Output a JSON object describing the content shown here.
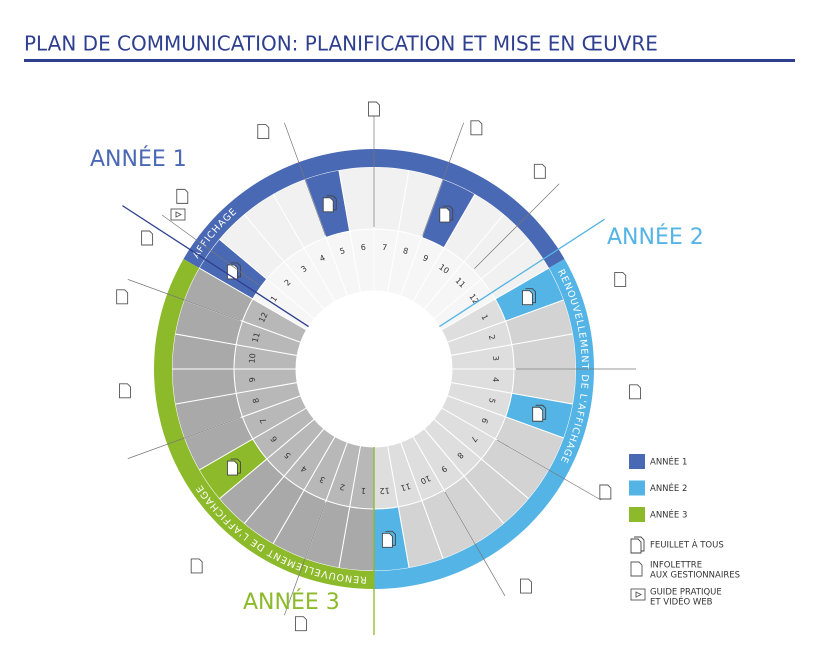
{
  "header": {
    "title": "PLAN DE COMMUNICATION: PLANIFICATION ET MISE EN ŒUVRE"
  },
  "years": [
    {
      "label": "ANNÉE 1",
      "band_label": "AFFICHAGE",
      "months": [
        1,
        2,
        3,
        4,
        5,
        6,
        7,
        8,
        9,
        10,
        11,
        12
      ]
    },
    {
      "label": "ANNÉE 2",
      "band_label": "RENOUVELLEMENT DE L'AFFICHAGE",
      "months": [
        1,
        2,
        3,
        4,
        5,
        6,
        7,
        8,
        9,
        10,
        11,
        12
      ]
    },
    {
      "label": "ANNÉE 3",
      "band_label": "RENOUVELLEMENT DE L'AFFICHAGE",
      "months": [
        1,
        2,
        3,
        4,
        5,
        6,
        7,
        8,
        9,
        10,
        11,
        12
      ]
    }
  ],
  "legend": {
    "years": [
      "ANNÉE 1",
      "ANNÉE 2",
      "ANNÉE 3"
    ],
    "icons": [
      [
        "FEUILLET À TOUS"
      ],
      [
        "INFOLETTRE",
        "AUX GESTIONNAIRES"
      ],
      [
        "GUIDE PRATIQUE",
        "ET VIDÉO WEB"
      ]
    ]
  }
}
